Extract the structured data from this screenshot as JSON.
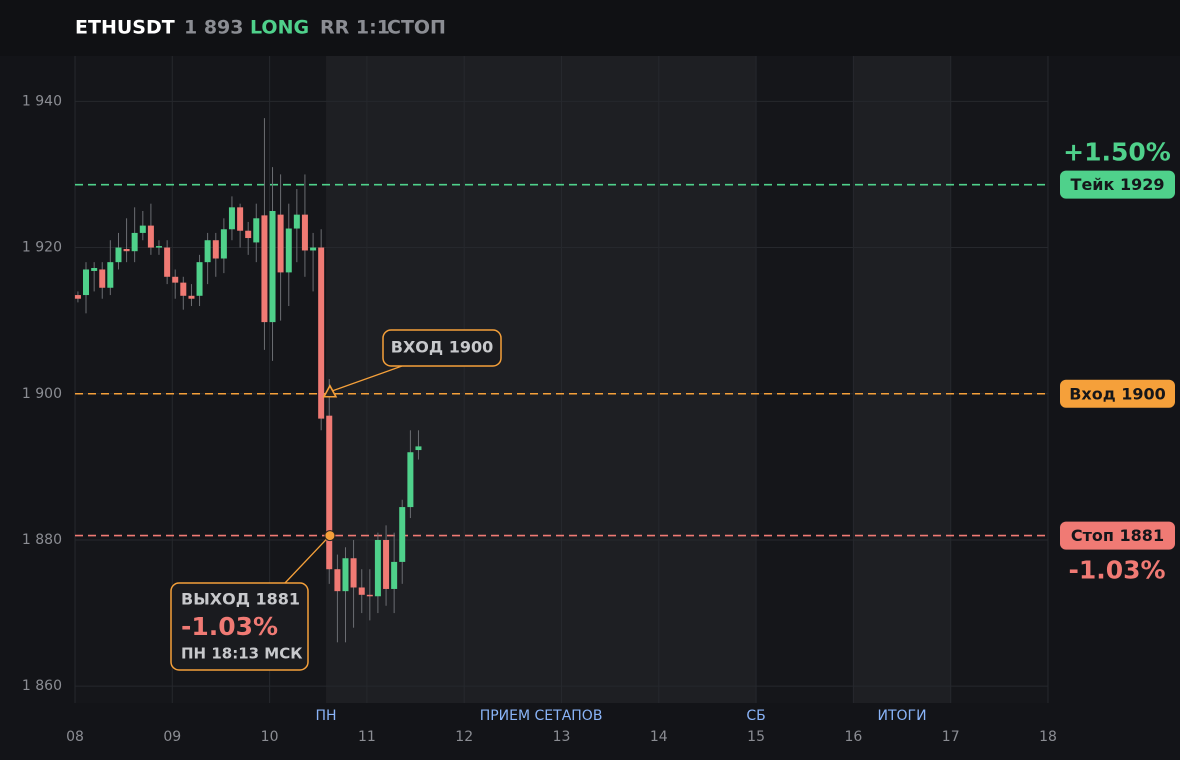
{
  "header": {
    "symbol": "ETHUSDT",
    "price": "1 893",
    "side": "LONG",
    "rr": "RR 1:1",
    "status": "СТОП"
  },
  "chart_data": {
    "type": "candlestick",
    "xlim": [
      8,
      18
    ],
    "ylim": [
      1857.7,
      1946.2
    ],
    "xticks": [
      {
        "value": 8,
        "label": "08"
      },
      {
        "value": 9,
        "label": "09"
      },
      10,
      11,
      12,
      13,
      14,
      15,
      16,
      17,
      18
    ],
    "yticks": [
      {
        "value": 1860,
        "label": "1 860"
      },
      {
        "value": 1880,
        "label": "1 880"
      },
      {
        "value": 1900,
        "label": "1 900"
      },
      {
        "value": 1920,
        "label": "1 920"
      },
      {
        "value": 1940,
        "label": "1 940"
      }
    ],
    "grid": true,
    "up_color": "#4fd18b",
    "down_color": "#f07a74",
    "x": [
      8.03,
      8.113,
      8.197,
      8.28,
      8.363,
      8.447,
      8.53,
      8.613,
      8.697,
      8.78,
      8.863,
      8.947,
      9.03,
      9.113,
      9.197,
      9.28,
      9.363,
      9.447,
      9.53,
      9.613,
      9.697,
      9.78,
      9.863,
      9.947,
      10.03,
      10.113,
      10.197,
      10.28,
      10.363,
      10.447,
      10.53,
      10.613,
      10.697,
      10.78,
      10.863,
      10.947,
      11.03,
      11.113,
      11.197,
      11.28,
      11.363,
      11.447,
      11.53
    ],
    "open": [
      1913.5,
      1913.5,
      1916.8,
      1917,
      1914.5,
      1918,
      1919.8,
      1919.5,
      1922,
      1923,
      1920,
      1920,
      1916,
      1915.2,
      1913.4,
      1913.4,
      1918,
      1921,
      1918.5,
      1922.5,
      1925.5,
      1922.3,
      1920.7,
      1924.4,
      1909.8,
      1924.5,
      1916.6,
      1922.6,
      1924.5,
      1919.6,
      1920,
      1897,
      1876,
      1873,
      1877.5,
      1873.5,
      1872.5,
      1872.3,
      1880,
      1873.3,
      1877,
      1884.5,
      1892.3
    ],
    "high": [
      1914,
      1918,
      1918,
      1918,
      1921,
      1922,
      1924,
      1925.5,
      1925,
      1926,
      1921,
      1921,
      1917,
      1916,
      1915,
      1919,
      1922,
      1922,
      1924,
      1927,
      1926,
      1923.5,
      1926,
      1937.7,
      1931,
      1930,
      1926,
      1928,
      1930,
      1922,
      1922.5,
      1902,
      1878,
      1879,
      1880,
      1876,
      1876,
      1881,
      1882,
      1881,
      1885.5,
      1895,
      1895
    ],
    "low": [
      1912.5,
      1911,
      1914,
      1913,
      1913.5,
      1917,
      1918,
      1918,
      1921,
      1919,
      1919,
      1915,
      1913,
      1911.5,
      1912,
      1912,
      1915,
      1916,
      1916.5,
      1921,
      1920,
      1919,
      1918,
      1906,
      1904.5,
      1910,
      1912,
      1918,
      1916,
      1914,
      1895,
      1874,
      1866,
      1866,
      1868,
      1870,
      1869,
      1870,
      1871,
      1870,
      1874,
      1883,
      1891
    ],
    "close": [
      1913,
      1917,
      1917.2,
      1914.5,
      1918,
      1920,
      1919.5,
      1922,
      1923,
      1920,
      1920.2,
      1916,
      1915.2,
      1913.4,
      1913,
      1918,
      1921,
      1918.5,
      1922.5,
      1925.5,
      1922.3,
      1921.3,
      1924,
      1909.8,
      1925,
      1916.6,
      1922.6,
      1924.5,
      1919.6,
      1920,
      1896.6,
      1876,
      1873,
      1877.5,
      1873.5,
      1872.5,
      1872.3,
      1880,
      1873.3,
      1877,
      1884.5,
      1892,
      1892.8
    ],
    "shaded": [
      {
        "start": 10.58,
        "end": 15
      },
      {
        "start": 16,
        "end": 17
      }
    ],
    "session_labels": [
      {
        "x": 10.58,
        "label": "ПН"
      },
      {
        "x": 12.79,
        "label": "ПРИЕМ СЕТАПОВ"
      },
      {
        "x": 15,
        "label": "СБ"
      },
      {
        "x": 16.5,
        "label": "ИТОГИ"
      }
    ],
    "levels": [
      {
        "value": 1928.6,
        "label": "Тейк 1929",
        "pct": "+1.50%",
        "color": "#4fd18b"
      },
      {
        "value": 1900,
        "label": "Вход 1900",
        "color": "#f5a03a"
      },
      {
        "value": 1880.6,
        "label": "Стоп 1881",
        "pct": "-1.03%",
        "color": "#f07a74"
      }
    ],
    "entry": {
      "x": 10.62,
      "y": 1900,
      "label": "ВХОД 1900"
    },
    "exit": {
      "x": 10.62,
      "y": 1880.6,
      "lines": [
        "ВЫХОД 1881",
        "-1.03%",
        "ПН 18:13 МСК"
      ]
    }
  }
}
